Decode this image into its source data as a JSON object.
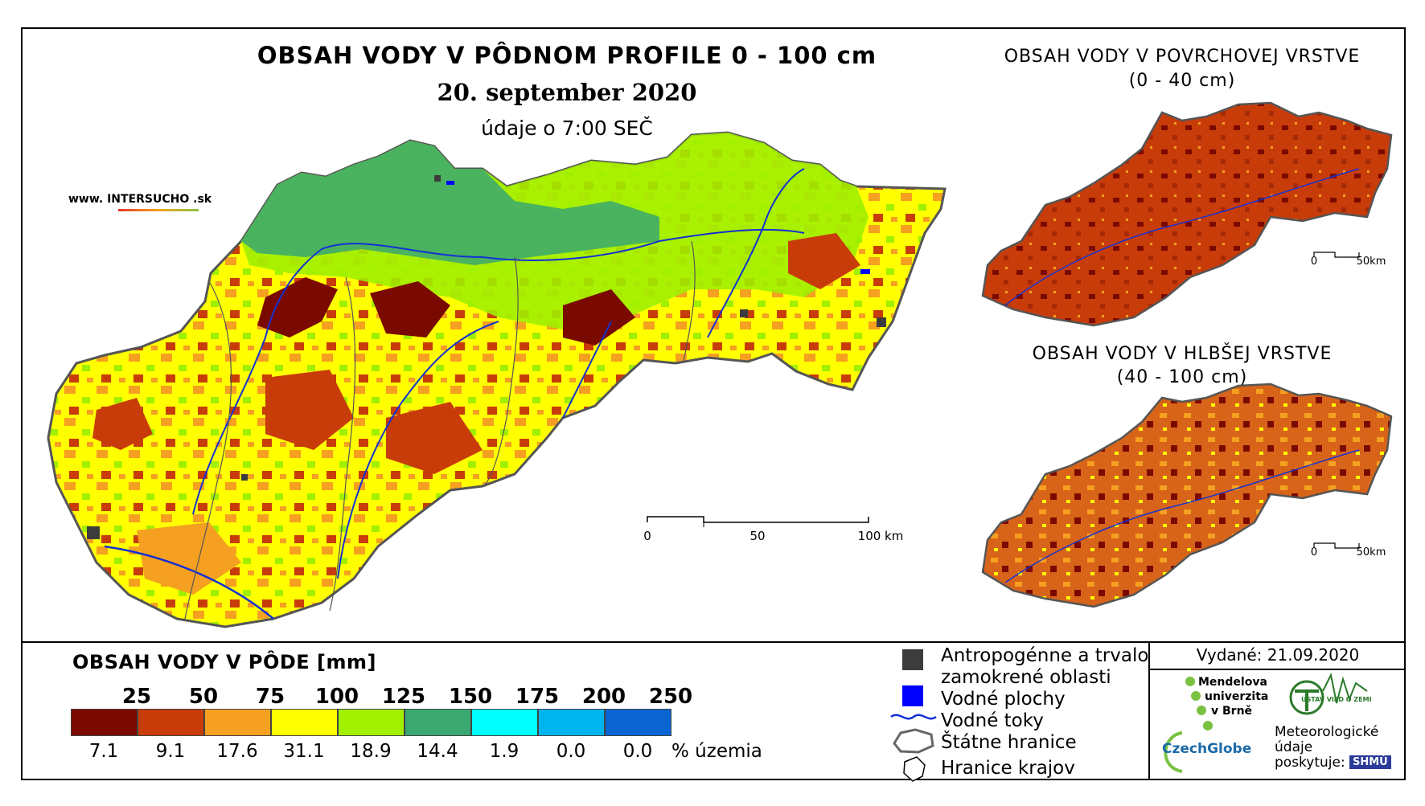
{
  "main_map": {
    "title": "OBSAH VODY V PÔDNOM PROFILE 0 - 100 cm",
    "date": "20. september 2020",
    "time": "údaje o 7:00 SEČ",
    "scale": {
      "labels": [
        "0",
        "50",
        "100 km"
      ]
    }
  },
  "logo": {
    "prefix": "www. INTER",
    "highlight": "SUCHO",
    "suffix": " .sk"
  },
  "surface_map": {
    "title_line1": "OBSAH VODY V POVRCHOVEJ VRSTVE",
    "title_line2": "(0 - 40 cm)",
    "scale": {
      "labels": [
        "0",
        "50km"
      ]
    }
  },
  "deep_map": {
    "title_line1": "OBSAH VODY V HLBŠEJ VRSTVE",
    "title_line2": "(40 - 100 cm)",
    "scale": {
      "labels": [
        "0",
        "50km"
      ]
    }
  },
  "legend": {
    "title": "OBSAH VODY V PÔDE [mm]",
    "breaks": [
      "25",
      "50",
      "75",
      "100",
      "125",
      "150",
      "175",
      "200",
      "250"
    ],
    "classes": [
      {
        "color": "#7a0a00",
        "percent": "7.1"
      },
      {
        "color": "#c83c0a",
        "percent": "9.1"
      },
      {
        "color": "#f5a020",
        "percent": "17.6"
      },
      {
        "color": "#ffff00",
        "percent": "31.1"
      },
      {
        "color": "#a0f000",
        "percent": "18.9"
      },
      {
        "color": "#3aa870",
        "percent": "14.4"
      },
      {
        "color": "#00ffff",
        "percent": "1.9"
      },
      {
        "color": "#00b4f0",
        "percent": "0.0"
      },
      {
        "color": "#0a64d2",
        "percent": "0.0"
      }
    ],
    "percent_unit": "% územia"
  },
  "symbols": {
    "urban_line1": "Antropogénne a trvalo",
    "urban_line2": "zamokrené oblasti",
    "water_bodies": "Vodné plochy",
    "rivers": "Vodné toky",
    "state_border": "Štátne hranice",
    "region_border": "Hranice krajov"
  },
  "credits": {
    "issued": "Vydané: 21.09.2020",
    "mendel": [
      "Mendelova",
      "univerzita",
      "v Brně"
    ],
    "czechglobe": "CzechGlobe",
    "ustav": "ÚSTAV VIED O ZEMI",
    "meteo": [
      "Meteorologické",
      "údaje",
      "poskytuje:"
    ],
    "shmu": "SHMÚ"
  },
  "colors": {
    "urban": "#3c3c3c",
    "water": "#0000ff",
    "river": "#1432d2",
    "border": "#666666"
  }
}
